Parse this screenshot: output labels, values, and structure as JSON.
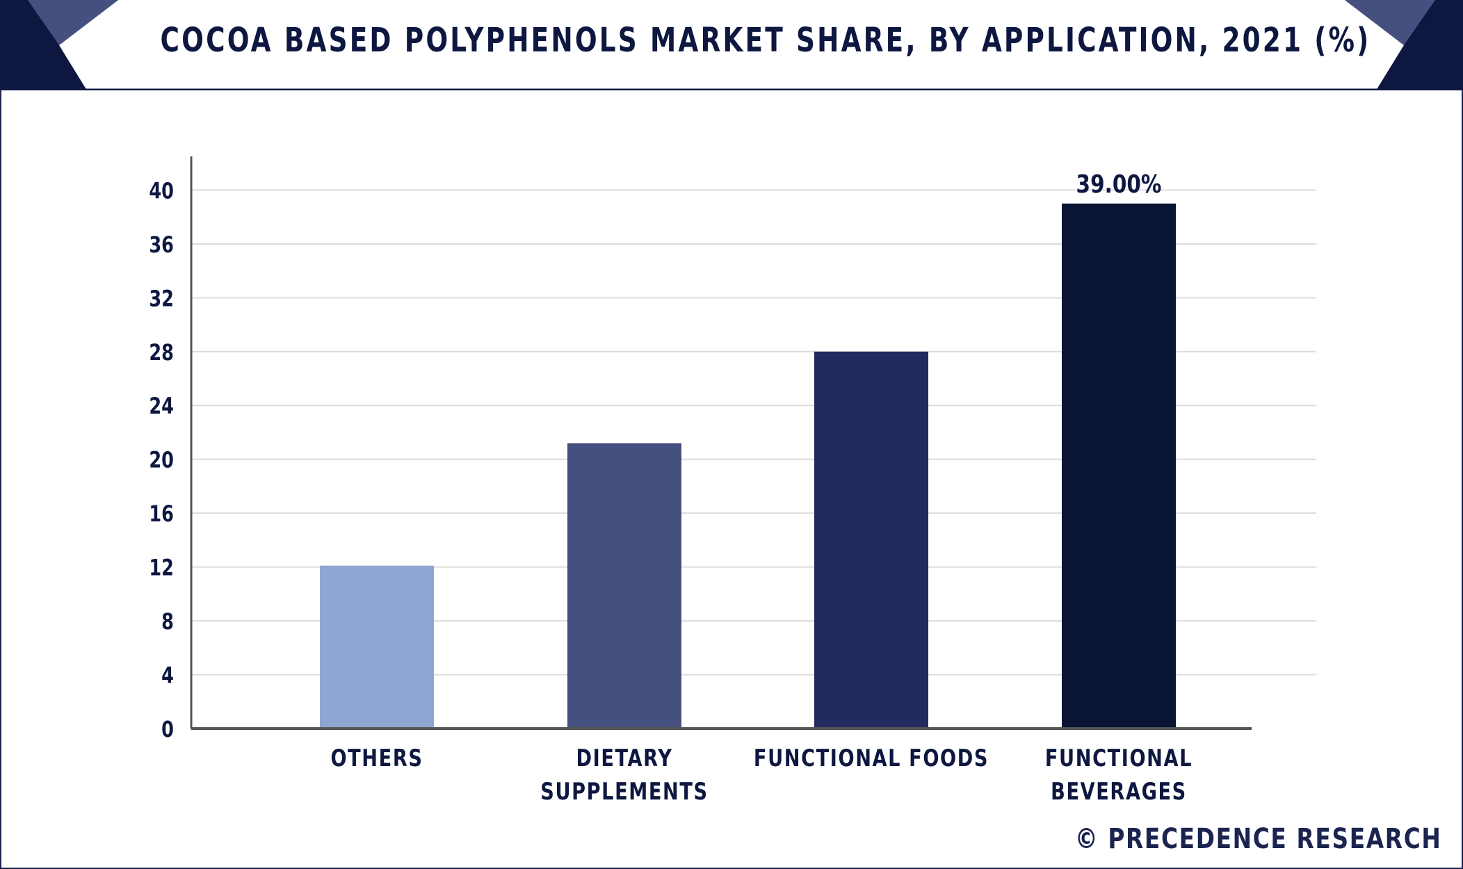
{
  "title": "COCOA BASED POLYPHENOLS MARKET SHARE, BY APPLICATION, 2021 (%)",
  "credit": "© PRECEDENCE RESEARCH",
  "colors": {
    "frame": "#1b2450",
    "header_dark": "#0d1740",
    "header_accent": "#46507f",
    "grid": "#dcdcdc",
    "axis": "#555555",
    "text": "#0d1740"
  },
  "chart_data": {
    "type": "bar",
    "title": "COCOA BASED POLYPHENOLS MARKET SHARE, BY APPLICATION, 2021 (%)",
    "categories": [
      [
        "OTHERS"
      ],
      [
        "DIETARY",
        "SUPPLEMENTS"
      ],
      [
        "FUNCTIONAL FOODS"
      ],
      [
        "FUNCTIONAL",
        "BEVERAGES"
      ]
    ],
    "values": [
      12.1,
      21.2,
      28.0,
      39.0
    ],
    "bar_colors": [
      "#8fa6d2",
      "#46507f",
      "#232a60",
      "#0a1533"
    ],
    "data_labels": [
      "",
      "",
      "",
      "39.00%"
    ],
    "yticks": [
      0,
      4,
      8,
      12,
      16,
      20,
      24,
      28,
      32,
      36,
      40
    ],
    "ylim": [
      0,
      42.5
    ],
    "grid": true,
    "xlabel": "",
    "ylabel": ""
  }
}
